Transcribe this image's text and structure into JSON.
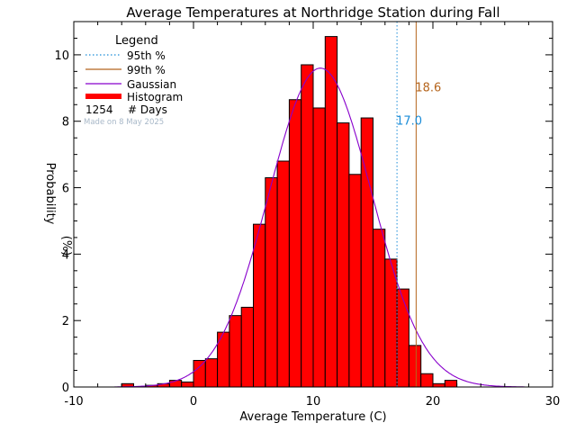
{
  "chart_data": {
    "type": "bar",
    "title": "Average Temperatures at Northridge Station during Fall",
    "xlabel": "Average Temperature (C)",
    "ylabel_top": "Probability",
    "ylabel_bottom": "(%)",
    "xlim": [
      -10,
      30
    ],
    "ylim": [
      0,
      11
    ],
    "xticks": [
      -10,
      0,
      10,
      20,
      30
    ],
    "yticks": [
      0,
      2,
      4,
      6,
      8,
      10
    ],
    "bin_width": 1,
    "histogram": {
      "bin_starts": [
        -6,
        -5,
        -4,
        -3,
        -2,
        -1,
        0,
        1,
        2,
        3,
        4,
        5,
        6,
        7,
        8,
        9,
        10,
        11,
        12,
        13,
        14,
        15,
        16,
        17,
        18,
        19,
        20,
        21
      ],
      "values": [
        0.1,
        0.0,
        0.05,
        0.1,
        0.2,
        0.15,
        0.8,
        0.85,
        1.65,
        2.15,
        2.4,
        4.9,
        6.3,
        6.8,
        8.65,
        9.7,
        8.4,
        10.55,
        7.95,
        6.4,
        8.1,
        4.75,
        3.85,
        2.95,
        1.25,
        0.4,
        0.1,
        0.2
      ],
      "color": "#ff0000"
    },
    "gaussian": {
      "mean": 10.6,
      "sigma": 4.3,
      "peak": 9.6,
      "color": "#8800cc"
    },
    "p95": {
      "value": 17.0,
      "label": "17.0",
      "color": "#1a8cd8"
    },
    "p99": {
      "value": 18.6,
      "label": "18.6",
      "color": "#b5651d"
    },
    "legend": {
      "title": "Legend",
      "p95_label": "95th %",
      "p99_label": "99th %",
      "gaussian_label": "Gaussian",
      "histogram_label": "Histogram",
      "count": "1254",
      "count_label": "# Days",
      "placement": "top-left"
    },
    "note": "Made on 8 May 2025",
    "note_color": "#a8b8c8"
  }
}
